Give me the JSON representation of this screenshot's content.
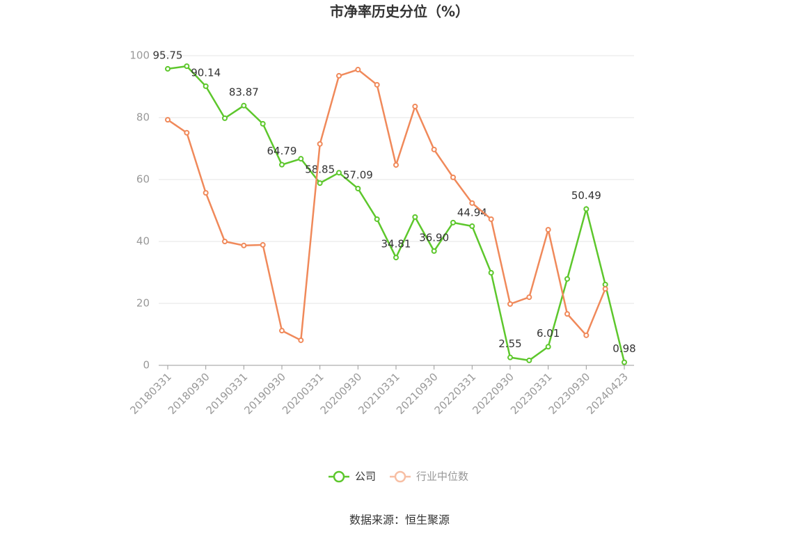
{
  "chart_data": {
    "type": "line",
    "title": "市净率历史分位（%）",
    "source": "数据来源：恒生聚源",
    "categories": [
      "20180331",
      null,
      "20180930",
      null,
      "20190331",
      null,
      "20190930",
      null,
      "20200331",
      null,
      "20200930",
      null,
      "20210331",
      null,
      "20210930",
      null,
      "20220331",
      null,
      "20220930",
      null,
      "20230331",
      null,
      "20230930",
      null,
      "20240423"
    ],
    "series": [
      {
        "name": "公司",
        "color": "#5dc72c",
        "values": [
          95.75,
          96.6,
          90.14,
          79.8,
          83.87,
          78.0,
          64.79,
          66.7,
          58.85,
          62.2,
          57.09,
          47.2,
          34.81,
          47.9,
          36.9,
          46.1,
          44.94,
          29.9,
          2.55,
          1.6,
          6.01,
          27.9,
          50.49,
          26.1,
          0.98
        ],
        "value_labels": [
          "95.75",
          null,
          "90.14",
          null,
          "83.87",
          null,
          "64.79",
          null,
          "58.85",
          null,
          "57.09",
          null,
          "34.81",
          null,
          "36.90",
          null,
          "44.94",
          null,
          "2.55",
          null,
          "6.01",
          null,
          "50.49",
          null,
          "0.98"
        ]
      },
      {
        "name": "行业中位数",
        "color": "#f0895a",
        "legend_color": "#f7bfa4",
        "values": [
          79.3,
          75.1,
          55.7,
          40.0,
          38.7,
          38.9,
          11.2,
          8.1,
          71.5,
          93.5,
          95.5,
          90.6,
          64.7,
          83.6,
          69.7,
          60.7,
          52.4,
          47.2,
          19.8,
          22.0,
          43.8,
          16.6,
          9.7,
          24.7,
          null
        ]
      }
    ],
    "ylim": [
      0,
      100
    ],
    "yticks": [
      0,
      20,
      40,
      60,
      80,
      100
    ],
    "grid": true
  }
}
